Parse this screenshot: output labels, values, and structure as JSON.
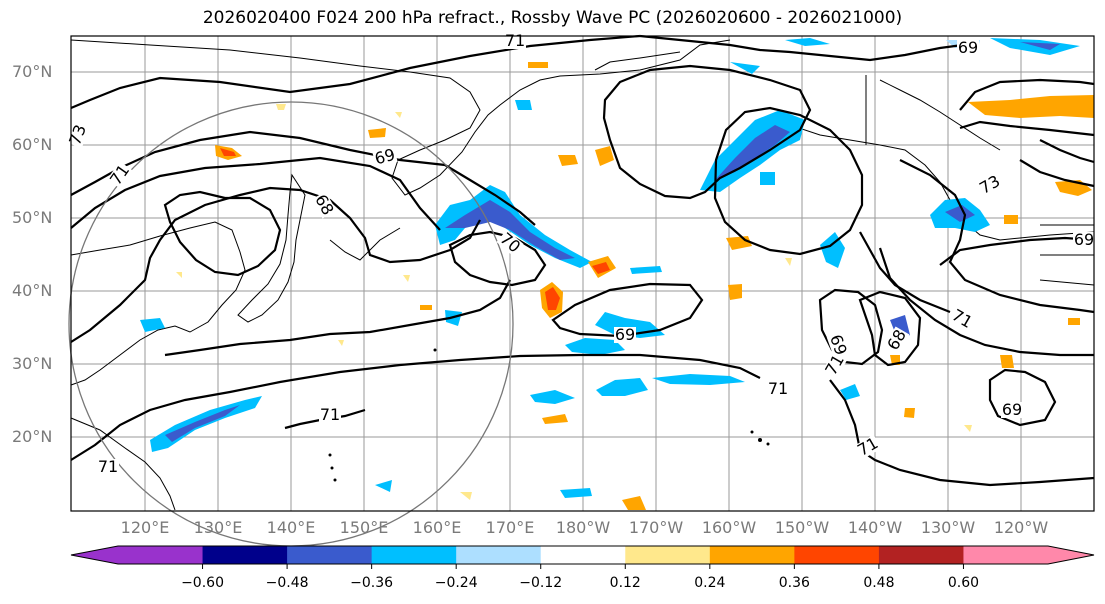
{
  "title": "2026020400 F024 200 hPa refract., Rossby Wave PC (2026020600 - 2026021000)",
  "lat_labels": [
    "70°N",
    "60°N",
    "50°N",
    "40°N",
    "30°N",
    "20°N"
  ],
  "lon_labels": [
    "120°E",
    "130°E",
    "140°E",
    "150°E",
    "160°E",
    "170°E",
    "180°W",
    "170°W",
    "160°W",
    "150°W",
    "140°W",
    "130°W",
    "120°W"
  ],
  "contour_labels": [
    "71",
    "69",
    "73",
    "71",
    "69",
    "68",
    "70",
    "69",
    "71",
    "73",
    "71",
    "69",
    "68",
    "69",
    "71",
    "71",
    "71",
    "71",
    "69"
  ],
  "colorbar": {
    "ticks": [
      "−0.60",
      "−0.48",
      "−0.36",
      "−0.24",
      "−0.12",
      "0.12",
      "0.24",
      "0.36",
      "0.48",
      "0.60"
    ],
    "colors": [
      "#9932CC",
      "#00008B",
      "#3A5BCD",
      "#00BFFF",
      "#ADDFFF",
      "#FFFFFF",
      "#FFE88C",
      "#FFA500",
      "#FF4500",
      "#B22222",
      "#FF88AA"
    ]
  }
}
